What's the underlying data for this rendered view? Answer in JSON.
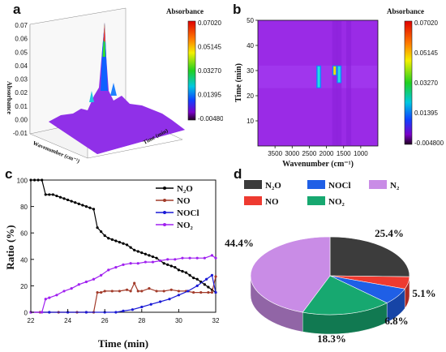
{
  "panels": {
    "a": {
      "label": "a",
      "colorbar_title": "Absorbance",
      "colorbar_ticks": [
        "0.07020",
        "0.05145",
        "0.03270",
        "0.01395",
        "-0.004800"
      ],
      "z_axis_label": "Absorbance",
      "z_ticks": [
        "0.07",
        "0.06",
        "0.05",
        "0.04",
        "0.03",
        "0.02",
        "0.01",
        "0.00",
        "-0.01"
      ],
      "x_axis_label": "Wavenumber (cm⁻¹)",
      "y_axis_label": "Time (min)"
    },
    "b": {
      "label": "b",
      "colorbar_title": "Absorbance",
      "colorbar_ticks": [
        "0.07020",
        "0.05145",
        "0.03270",
        "0.01395",
        "-0.004800"
      ]
    },
    "c": {
      "label": "c"
    },
    "d": {
      "label": "d"
    }
  },
  "colors": {
    "N2O": "#000000",
    "NO_line": "#a23b2a",
    "NOCl_line": "#1a1ad6",
    "NO2_line": "#a020f0",
    "pie_N2O": "#3c3c3c",
    "pie_NOCl": "#1f5fe6",
    "pie_N2": "#c98ce6",
    "pie_NO": "#ee3a30",
    "pie_NO2": "#17a870"
  },
  "chart_data": [
    {
      "type": "heatmap",
      "panel": "b",
      "xlabel": "Wavenumber (cm⁻¹)",
      "ylabel": "Time (min)",
      "xlim": [
        4000,
        500
      ],
      "ylim": [
        0,
        50
      ],
      "x_ticks": [
        "3500",
        "3000",
        "2500",
        "2000",
        "1500",
        "1000"
      ],
      "y_ticks": [
        "10",
        "20",
        "30",
        "40",
        "50"
      ],
      "colorbar_range": [
        -0.0048,
        0.0702
      ],
      "hotspots": [
        {
          "wavenumber": 2224,
          "time_from": 23,
          "time_to": 32,
          "level": 0.03
        },
        {
          "wavenumber": 1760,
          "time_from": 28,
          "time_to": 32,
          "level": 0.05
        },
        {
          "wavenumber": 1630,
          "time_from": 25,
          "time_to": 32,
          "level": 0.03
        }
      ]
    },
    {
      "type": "line",
      "panel": "c",
      "xlabel": "Time (min)",
      "ylabel": "Ratio (%)",
      "xlim": [
        22,
        32
      ],
      "ylim": [
        0,
        100
      ],
      "x_ticks": [
        "22",
        "24",
        "26",
        "28",
        "30",
        "32"
      ],
      "y_ticks": [
        "0",
        "20",
        "40",
        "60",
        "80",
        "100"
      ],
      "legend_position": "top-right",
      "series": [
        {
          "name": "N₂O",
          "key": "N2O",
          "x": [
            22,
            22.2,
            22.4,
            22.6,
            22.8,
            23.0,
            23.2,
            23.4,
            23.6,
            23.8,
            24.0,
            24.2,
            24.4,
            24.6,
            24.8,
            25.0,
            25.2,
            25.4,
            25.6,
            25.8,
            26.0,
            26.2,
            26.4,
            26.6,
            26.8,
            27.0,
            27.2,
            27.4,
            27.6,
            27.8,
            28.0,
            28.2,
            28.4,
            28.6,
            28.8,
            29.0,
            29.2,
            29.4,
            29.6,
            29.8,
            30.0,
            30.2,
            30.4,
            30.6,
            30.8,
            31.0,
            31.2,
            31.4,
            31.6,
            31.8,
            32.0
          ],
          "y": [
            100,
            100,
            100,
            100,
            89,
            89,
            89,
            88,
            87,
            86,
            85,
            84,
            83,
            82,
            81,
            80,
            79,
            78,
            64,
            61,
            58,
            56,
            55,
            54,
            53,
            52,
            51,
            49,
            47,
            46,
            45,
            44,
            43,
            42,
            41,
            39,
            37,
            36,
            35,
            34,
            32,
            31,
            30,
            28,
            26,
            25,
            23,
            21,
            19,
            17,
            15
          ]
        },
        {
          "name": "NO",
          "key": "NO",
          "x": [
            22,
            22.5,
            23,
            23.5,
            24,
            24.5,
            25,
            25.4,
            25.6,
            25.8,
            26.0,
            26.4,
            26.8,
            27.2,
            27.4,
            27.6,
            27.8,
            28.0,
            28.4,
            28.8,
            29.2,
            29.6,
            30.0,
            30.4,
            30.8,
            31.2,
            31.6,
            31.8,
            32.0
          ],
          "y": [
            0,
            0,
            0,
            0,
            0,
            0,
            0,
            0,
            15,
            15,
            16,
            16,
            16,
            17,
            16,
            22,
            16,
            16,
            18,
            16,
            16,
            17,
            16,
            16,
            15,
            15,
            15,
            15,
            27
          ]
        },
        {
          "name": "NOCl",
          "key": "NOCl",
          "x": [
            22,
            23,
            24,
            25,
            26,
            26.6,
            27.0,
            27.5,
            28.0,
            28.5,
            29.0,
            29.5,
            30.0,
            30.5,
            31.0,
            31.5,
            31.8,
            32.0
          ],
          "y": [
            0,
            0,
            0,
            0,
            0,
            0,
            1,
            2,
            4,
            6,
            8,
            10,
            13,
            16,
            20,
            25,
            28,
            15
          ]
        },
        {
          "name": "NO₂",
          "key": "NO2",
          "x": [
            22,
            22.6,
            22.8,
            23.0,
            23.4,
            23.8,
            24.2,
            24.6,
            25.0,
            25.4,
            25.8,
            26.2,
            26.6,
            27.0,
            27.4,
            27.8,
            28.2,
            28.6,
            29.0,
            29.4,
            29.8,
            30.2,
            30.6,
            31.0,
            31.4,
            31.8,
            32.0
          ],
          "y": [
            0,
            0,
            10,
            11,
            13,
            16,
            18,
            21,
            23,
            25,
            28,
            32,
            34,
            36,
            37,
            37,
            38,
            38,
            39,
            40,
            40,
            41,
            41,
            41,
            41,
            43,
            41
          ]
        }
      ]
    },
    {
      "type": "pie",
      "panel": "d",
      "slices": [
        {
          "label": "N₂O",
          "value": 25.4,
          "display": "25.4%",
          "key": "pie_N2O"
        },
        {
          "label": "NO",
          "value": 5.1,
          "display": "5.1%",
          "key": "pie_NO"
        },
        {
          "label": "NOCl",
          "value": 6.8,
          "display": "6.8%",
          "key": "pie_NOCl"
        },
        {
          "label": "NO₂",
          "value": 18.3,
          "display": "18.3%",
          "key": "pie_NO2"
        },
        {
          "label": "N₂",
          "value": 44.4,
          "display": "44.4%",
          "key": "pie_N2"
        }
      ],
      "legend_order": [
        "N₂O",
        "NOCl",
        "N₂",
        "NO",
        "NO₂"
      ]
    }
  ]
}
